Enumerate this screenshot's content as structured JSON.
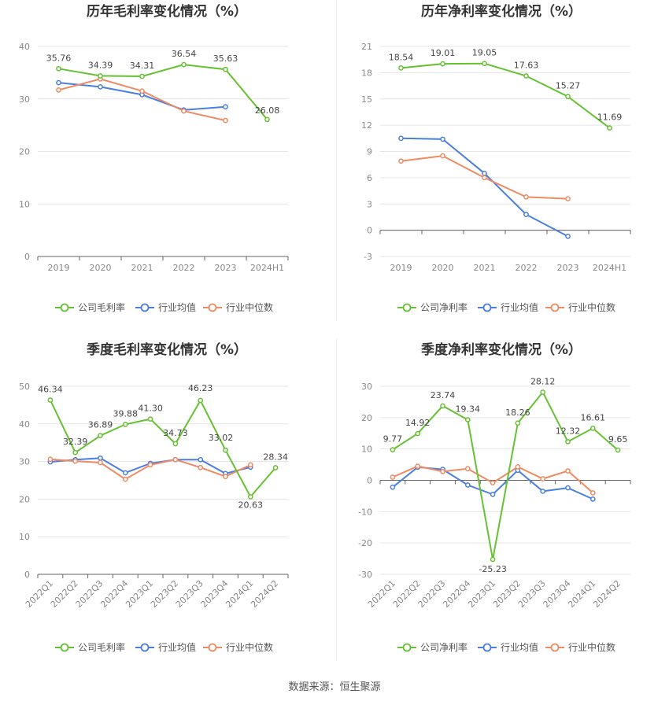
{
  "source": "数据来源：恒生聚源",
  "colors": {
    "company": "#66c132",
    "avg": "#4a7ee0",
    "median": "#f08a62"
  },
  "chart_data": [
    {
      "type": "line",
      "title": "历年毛利率变化情况（%）",
      "categories": [
        "2019",
        "2020",
        "2021",
        "2022",
        "2023",
        "2024H1"
      ],
      "ylim": [
        0,
        40
      ],
      "yticks": [
        0,
        10,
        20,
        30,
        40
      ],
      "grid": true,
      "legend": "bottom",
      "series": [
        {
          "name": "公司毛利率",
          "values": [
            35.76,
            34.39,
            34.31,
            36.54,
            35.63,
            26.08
          ],
          "labels": [
            "35.76",
            "34.39",
            "34.31",
            "36.54",
            "35.63",
            "26.08"
          ]
        },
        {
          "name": "行业均值",
          "values": [
            33.1,
            32.3,
            30.8,
            27.9,
            28.5,
            null
          ]
        },
        {
          "name": "行业中位数",
          "values": [
            31.7,
            33.8,
            31.5,
            27.7,
            25.9,
            null
          ]
        }
      ]
    },
    {
      "type": "line",
      "title": "历年净利率变化情况（%）",
      "categories": [
        "2019",
        "2020",
        "2021",
        "2022",
        "2023",
        "2024H1"
      ],
      "ylim": [
        -3,
        21
      ],
      "yticks": [
        -3,
        0,
        3,
        6,
        9,
        12,
        15,
        18,
        21
      ],
      "grid": true,
      "legend": "bottom",
      "series": [
        {
          "name": "公司净利率",
          "values": [
            18.54,
            19.01,
            19.05,
            17.63,
            15.27,
            11.69
          ],
          "labels": [
            "18.54",
            "19.01",
            "19.05",
            "17.63",
            "15.27",
            "11.69"
          ]
        },
        {
          "name": "行业均值",
          "values": [
            10.5,
            10.4,
            6.5,
            1.8,
            -0.7,
            null
          ]
        },
        {
          "name": "行业中位数",
          "values": [
            7.9,
            8.5,
            6.0,
            3.8,
            3.6,
            null
          ]
        }
      ]
    },
    {
      "type": "line",
      "title": "季度毛利率变化情况（%）",
      "categories": [
        "2022Q1",
        "2022Q2",
        "2022Q3",
        "2022Q4",
        "2023Q1",
        "2023Q2",
        "2023Q3",
        "2023Q4",
        "2024Q1",
        "2024Q2"
      ],
      "ylim": [
        0,
        50
      ],
      "yticks": [
        0,
        10,
        20,
        30,
        40,
        50
      ],
      "grid": true,
      "legend": "bottom",
      "series": [
        {
          "name": "公司毛利率",
          "values": [
            46.34,
            32.39,
            36.89,
            39.88,
            41.3,
            34.73,
            46.23,
            33.02,
            20.63,
            28.34
          ],
          "labels": [
            "46.34",
            "32.39",
            "36.89",
            "39.88",
            "41.30",
            "34.73",
            "46.23",
            "33.02",
            "20.63",
            "28.34"
          ]
        },
        {
          "name": "行业均值",
          "values": [
            29.9,
            30.5,
            30.9,
            27.0,
            29.5,
            30.5,
            30.5,
            26.8,
            28.5,
            null
          ]
        },
        {
          "name": "行业中位数",
          "values": [
            30.6,
            30.1,
            29.7,
            25.3,
            29.1,
            30.5,
            28.4,
            26.0,
            29.1,
            null
          ]
        }
      ]
    },
    {
      "type": "line",
      "title": "季度净利率变化情况（%）",
      "categories": [
        "2022Q1",
        "2022Q2",
        "2022Q3",
        "2022Q4",
        "2023Q1",
        "2023Q2",
        "2023Q3",
        "2023Q4",
        "2024Q1",
        "2024Q2"
      ],
      "ylim": [
        -30,
        30
      ],
      "yticks": [
        -30,
        -20,
        -10,
        0,
        10,
        20,
        30
      ],
      "grid": true,
      "legend": "bottom",
      "series": [
        {
          "name": "公司净利率",
          "values": [
            9.77,
            14.92,
            23.74,
            19.34,
            -25.23,
            18.26,
            28.12,
            12.32,
            16.61,
            9.65
          ],
          "labels": [
            "9.77",
            "14.92",
            "23.74",
            "19.34",
            "-25.23",
            "18.26",
            "28.12",
            "12.32",
            "16.61",
            "9.65"
          ]
        },
        {
          "name": "行业均值",
          "values": [
            -2.2,
            4.2,
            3.5,
            -1.5,
            -4.5,
            3.2,
            -3.5,
            -2.4,
            -6.0,
            null
          ]
        },
        {
          "name": "行业中位数",
          "values": [
            1.0,
            4.5,
            2.8,
            3.7,
            -0.8,
            4.3,
            0.5,
            3.0,
            -4.0,
            null
          ]
        }
      ]
    }
  ]
}
